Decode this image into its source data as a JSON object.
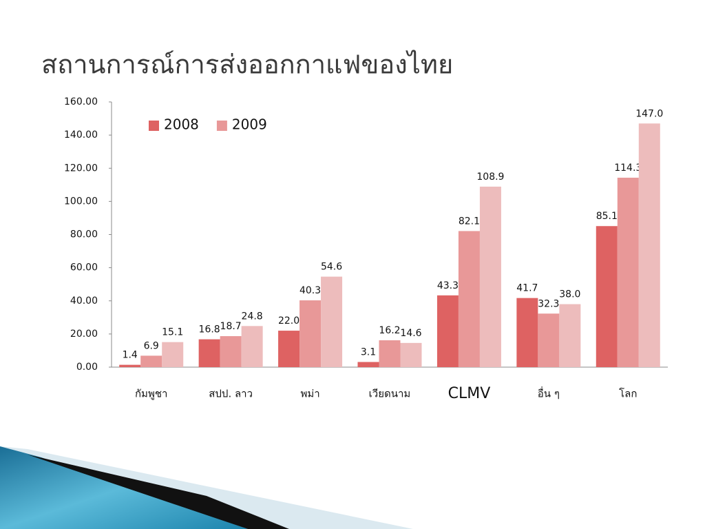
{
  "chart_data": {
    "type": "bar",
    "title": "สถานการณ์การส่งออกกาแฟของไทย",
    "categories": [
      "กัมพูชา",
      "สปป. ลาว",
      "พม่า",
      "เวียดนาม",
      "CLMV",
      "อื่น ๆ",
      "โลก"
    ],
    "series": [
      {
        "name": "2008",
        "color": "#de6262",
        "values": [
          1.4,
          16.8,
          22.0,
          3.1,
          43.3,
          41.7,
          85.1
        ],
        "value_labels": [
          "1.4",
          "16.8",
          "22.0",
          "3.1",
          "43.3",
          "41.7",
          "85.1"
        ]
      },
      {
        "name": "2009",
        "color": "#e89898",
        "values": [
          6.9,
          18.7,
          40.3,
          16.2,
          82.1,
          32.3,
          114.3
        ],
        "value_labels": [
          "6.9",
          "18.7",
          "40.3",
          "16.2",
          "82.1",
          "32.3",
          "114.3"
        ]
      },
      {
        "color": "#edbcbc",
        "values": [
          15.1,
          24.8,
          54.6,
          14.6,
          108.9,
          38.0,
          147.0
        ],
        "value_labels": [
          "15.1",
          "24.8",
          "54.6",
          "14.6",
          "108.9",
          "38.0",
          "147.0"
        ]
      }
    ],
    "ylim": [
      0,
      160
    ],
    "yticks": [
      {
        "value": 0,
        "label": "0.00"
      },
      {
        "value": 20,
        "label": "20.00"
      },
      {
        "value": 40,
        "label": "40.00"
      },
      {
        "value": 60,
        "label": "60.00"
      },
      {
        "value": 80,
        "label": "80.00"
      },
      {
        "value": 100,
        "label": "100.00"
      },
      {
        "value": 120,
        "label": "120.00"
      },
      {
        "value": 140,
        "label": "140.00"
      },
      {
        "value": 160,
        "label": "160.00"
      }
    ],
    "grid": false,
    "legend": "top-left"
  }
}
